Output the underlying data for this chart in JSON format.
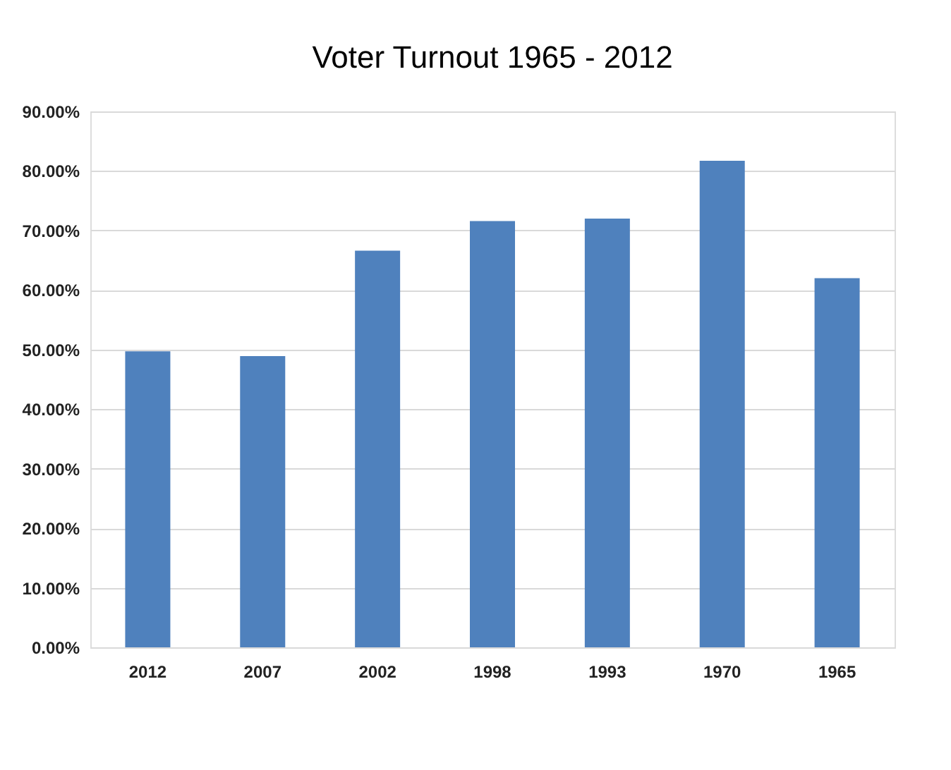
{
  "chart_data": {
    "type": "bar",
    "title": "Voter Turnout  1965 - 2012",
    "categories": [
      "2012",
      "2007",
      "2002",
      "1998",
      "1993",
      "1970",
      "1965"
    ],
    "values": [
      49.7,
      48.9,
      66.6,
      71.6,
      72.0,
      81.7,
      62.0
    ],
    "color": "#4f81bd",
    "ylim": [
      0,
      90
    ],
    "yticks": [
      {
        "value": 0,
        "label": "0.00%"
      },
      {
        "value": 10,
        "label": "10.00%"
      },
      {
        "value": 20,
        "label": "20.00%"
      },
      {
        "value": 30,
        "label": "30.00%"
      },
      {
        "value": 40,
        "label": "40.00%"
      },
      {
        "value": 50,
        "label": "50.00%"
      },
      {
        "value": 60,
        "label": "60.00%"
      },
      {
        "value": 70,
        "label": "70.00%"
      },
      {
        "value": 80,
        "label": "80.00%"
      },
      {
        "value": 90,
        "label": "90.00%"
      }
    ],
    "grid": "y"
  }
}
